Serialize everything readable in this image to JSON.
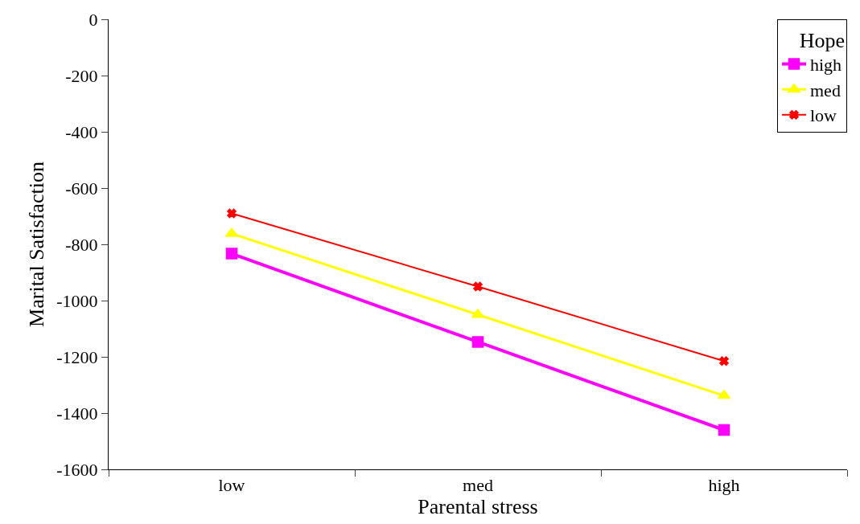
{
  "chart_data": {
    "type": "line",
    "xlabel": "Parental stress",
    "ylabel": "Marital Satisfaction",
    "legend_title": "Hope",
    "legend": "top right",
    "categories": [
      "low",
      "med",
      "high"
    ],
    "ylim": [
      -1600,
      0
    ],
    "yticks": [
      -1600,
      -1400,
      -1200,
      -1000,
      -800,
      -600,
      -400,
      -200,
      0
    ],
    "series": [
      {
        "name": "high",
        "color": "#ff00ff",
        "marker": "square",
        "values": [
          -833,
          -1147,
          -1460
        ]
      },
      {
        "name": "med",
        "color": "#ffff00",
        "marker": "triangle",
        "values": [
          -762,
          -1050,
          -1338
        ]
      },
      {
        "name": "low",
        "color": "#ff0000",
        "marker": "cross",
        "values": [
          -690,
          -950,
          -1215
        ]
      }
    ]
  }
}
